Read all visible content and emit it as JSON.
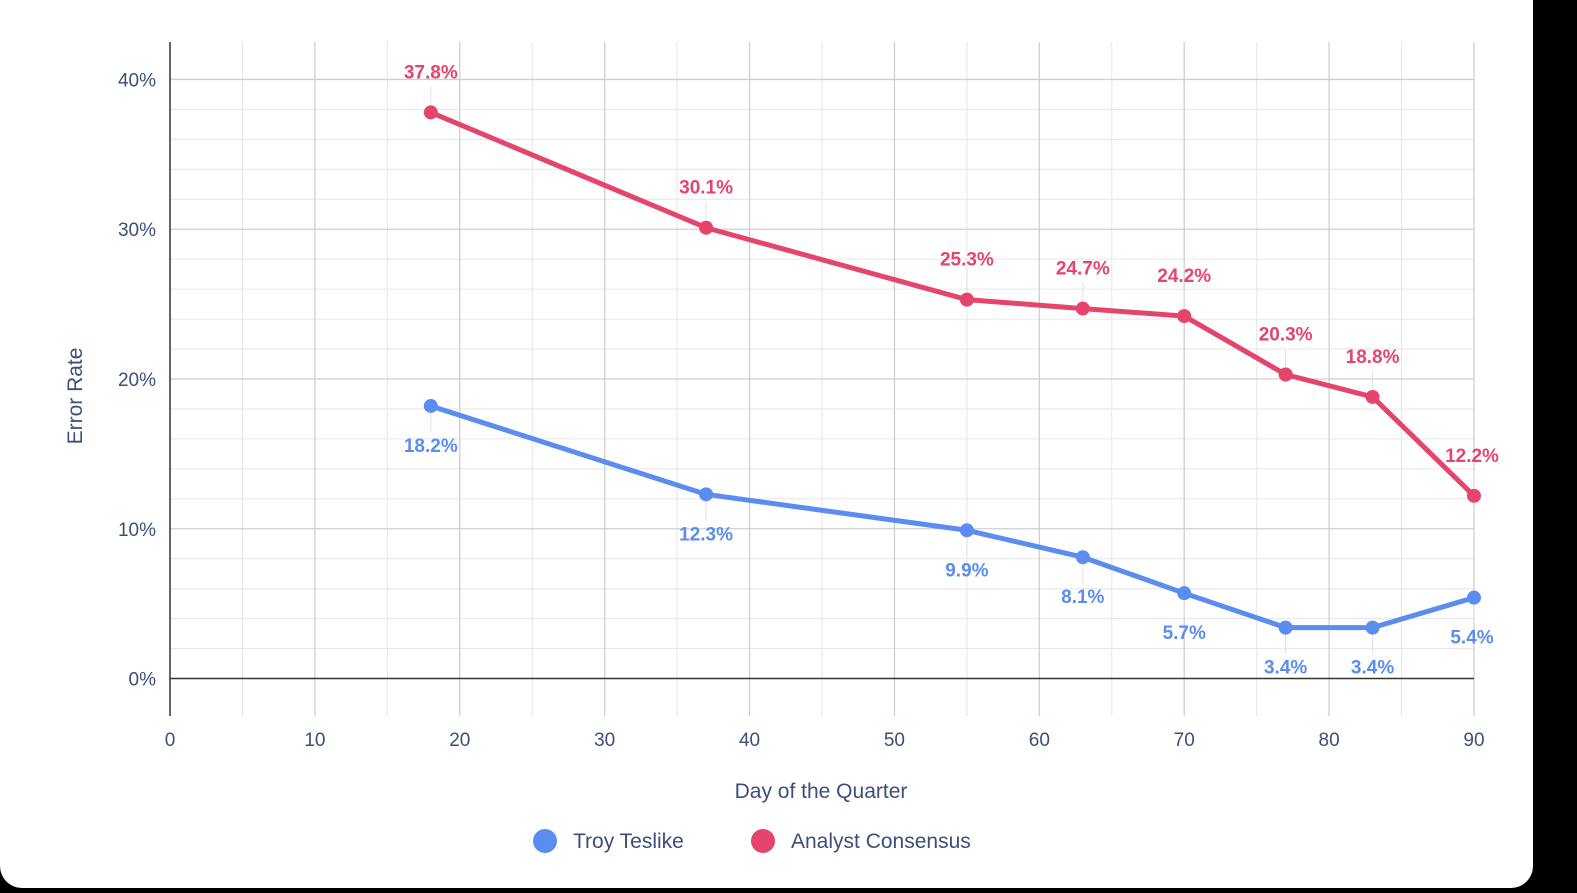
{
  "chart_data": {
    "type": "line",
    "title": "",
    "xlabel": "Day of the Quarter",
    "ylabel": "Error Rate",
    "xlim": [
      0,
      90
    ],
    "ylim": [
      -2.5,
      42.5
    ],
    "x_ticks": [
      0,
      10,
      20,
      30,
      40,
      50,
      60,
      70,
      80,
      90
    ],
    "y_ticks": [
      0,
      10,
      20,
      30,
      40
    ],
    "y_tick_format": "%",
    "grid": true,
    "legend_position": "bottom",
    "series": [
      {
        "name": "Troy Teslike",
        "color": "#5b8def",
        "points": [
          [
            18,
            18.2
          ],
          [
            37,
            12.3
          ],
          [
            55,
            9.9
          ],
          [
            63,
            8.1
          ],
          [
            70,
            5.7
          ],
          [
            77,
            3.4
          ],
          [
            83,
            3.4
          ],
          [
            90,
            5.4
          ]
        ],
        "labels": [
          "18.2%",
          "12.3%",
          "9.9%",
          "8.1%",
          "5.7%",
          "3.4%",
          "3.4%",
          "5.4%"
        ]
      },
      {
        "name": "Analyst Consensus",
        "color": "#e5446d",
        "points": [
          [
            18,
            37.8
          ],
          [
            37,
            30.1
          ],
          [
            55,
            25.3
          ],
          [
            63,
            24.7
          ],
          [
            70,
            24.2
          ],
          [
            77,
            20.3
          ],
          [
            83,
            18.8
          ],
          [
            90,
            12.2
          ]
        ],
        "labels": [
          "37.8%",
          "30.1%",
          "25.3%",
          "24.7%",
          "24.2%",
          "20.3%",
          "18.8%",
          "12.2%"
        ]
      }
    ]
  }
}
